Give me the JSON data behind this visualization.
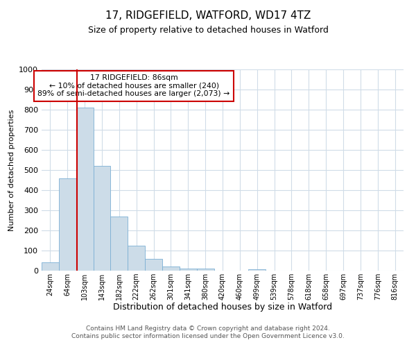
{
  "title": "17, RIDGEFIELD, WATFORD, WD17 4TZ",
  "subtitle": "Size of property relative to detached houses in Watford",
  "xlabel": "Distribution of detached houses by size in Watford",
  "ylabel": "Number of detached properties",
  "bar_labels": [
    "24sqm",
    "64sqm",
    "103sqm",
    "143sqm",
    "182sqm",
    "222sqm",
    "262sqm",
    "301sqm",
    "341sqm",
    "380sqm",
    "420sqm",
    "460sqm",
    "499sqm",
    "539sqm",
    "578sqm",
    "618sqm",
    "658sqm",
    "697sqm",
    "737sqm",
    "776sqm",
    "816sqm"
  ],
  "bar_values": [
    40,
    460,
    810,
    520,
    270,
    125,
    57,
    22,
    12,
    12,
    0,
    0,
    8,
    0,
    0,
    0,
    0,
    0,
    0,
    0,
    0
  ],
  "bar_color": "#ccdce8",
  "bar_edge_color": "#7bafd4",
  "ylim": [
    0,
    1000
  ],
  "yticks": [
    0,
    100,
    200,
    300,
    400,
    500,
    600,
    700,
    800,
    900,
    1000
  ],
  "vline_x": 1.55,
  "vline_color": "#cc0000",
  "annotation_text": "17 RIDGEFIELD: 86sqm\n← 10% of detached houses are smaller (240)\n89% of semi-detached houses are larger (2,073) →",
  "annotation_box_color": "#ffffff",
  "annotation_box_edge": "#cc0000",
  "footer_line1": "Contains HM Land Registry data © Crown copyright and database right 2024.",
  "footer_line2": "Contains public sector information licensed under the Open Government Licence v3.0.",
  "bg_color": "#ffffff",
  "grid_color": "#d0dce8"
}
